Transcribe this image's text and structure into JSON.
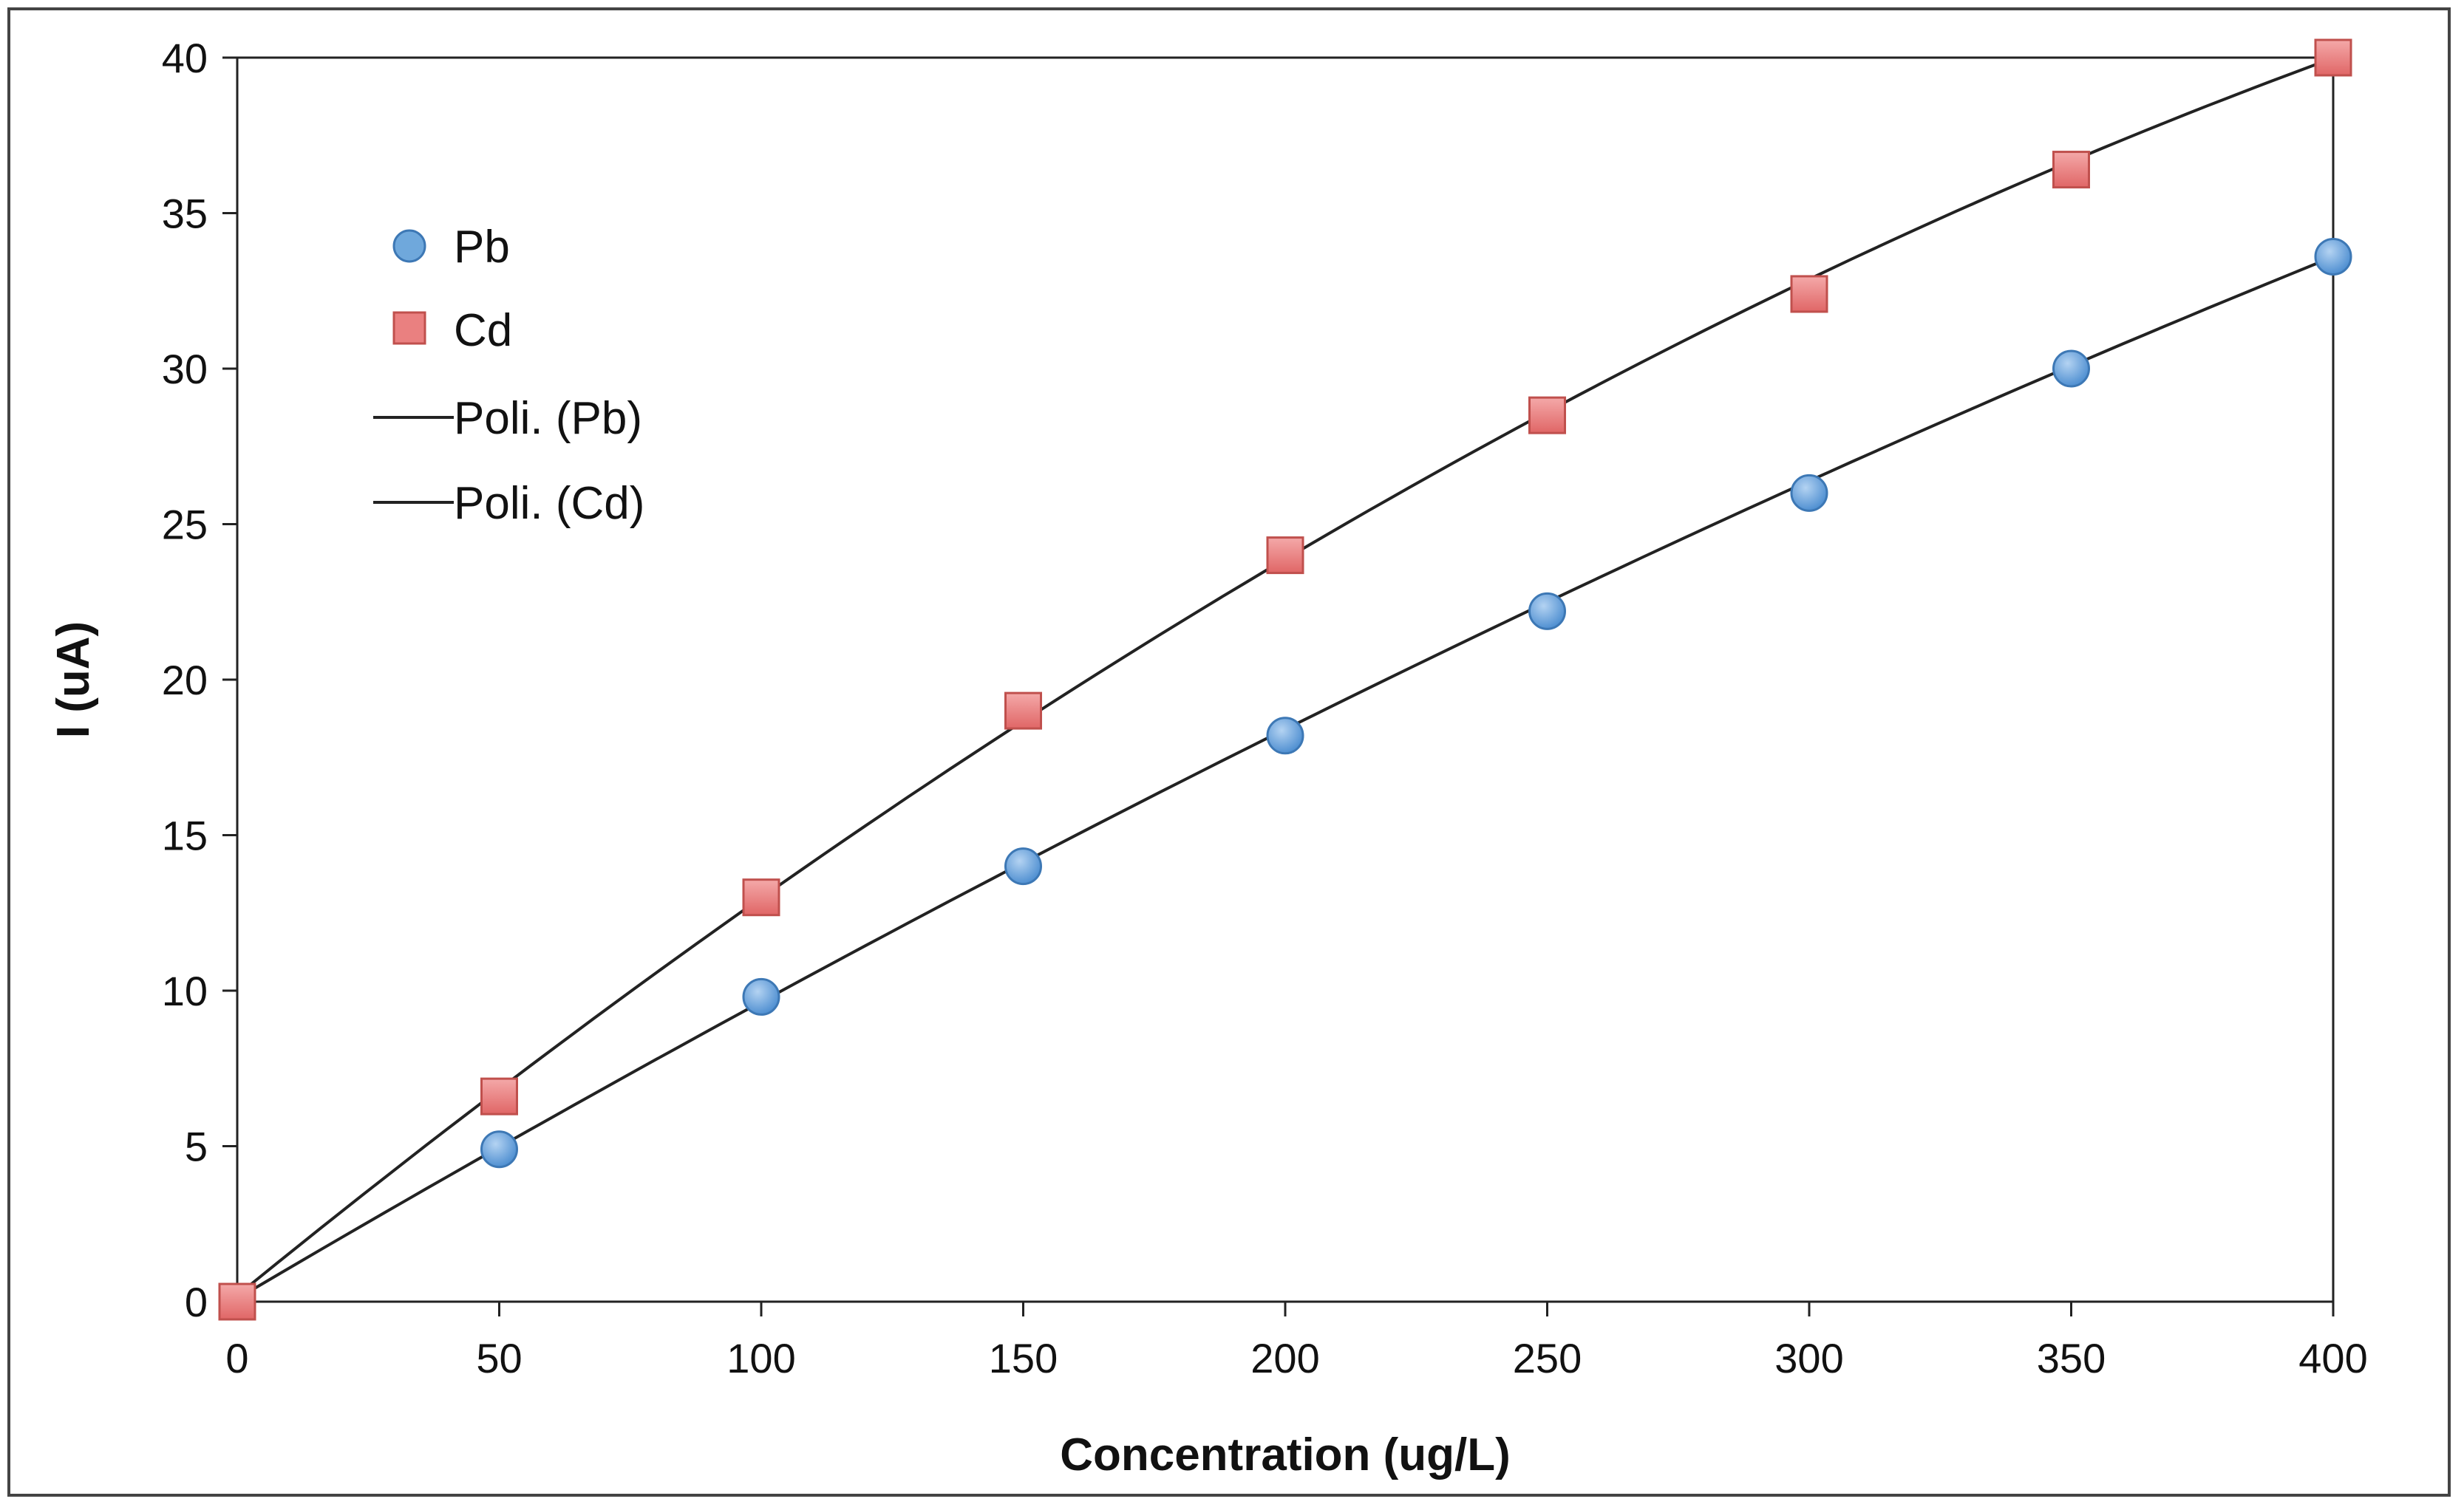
{
  "chart_data": {
    "type": "scatter",
    "title": "",
    "xlabel": "Concentration (ug/L)",
    "ylabel": "I (uA)",
    "xlim": [
      0,
      400
    ],
    "ylim": [
      0,
      40
    ],
    "xticks": [
      0,
      50,
      100,
      150,
      200,
      250,
      300,
      350,
      400
    ],
    "yticks": [
      0,
      5,
      10,
      15,
      20,
      25,
      30,
      35,
      40
    ],
    "x": [
      0,
      50,
      100,
      150,
      200,
      250,
      300,
      350,
      400
    ],
    "grid": false,
    "legend_position": "top-left",
    "series": [
      {
        "name": "Pb",
        "marker": "circle",
        "color": "#5b9bd5",
        "values": [
          0,
          4.9,
          9.8,
          14.0,
          18.2,
          22.2,
          26.0,
          30.0,
          33.6
        ]
      },
      {
        "name": "Cd",
        "marker": "square",
        "color": "#e06666",
        "values": [
          0,
          6.6,
          13.0,
          19.0,
          24.0,
          28.5,
          32.4,
          36.4,
          40.0
        ]
      }
    ],
    "trendlines": [
      {
        "name": "Poli. (Pb)",
        "of": "Pb",
        "type": "polynomial",
        "color": "#222222",
        "coefficients": [
          0.1,
          0.0993,
          -3.89e-05
        ]
      },
      {
        "name": "Poli. (Cd)",
        "of": "Cd",
        "type": "polynomial",
        "color": "#222222",
        "coefficients": [
          0.2,
          0.1373,
          -9.46e-05
        ]
      }
    ]
  }
}
